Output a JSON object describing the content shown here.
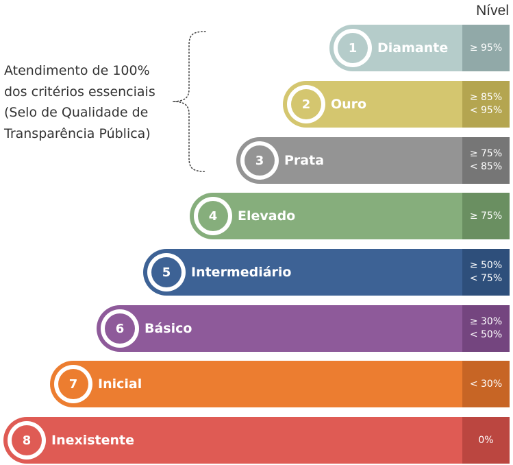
{
  "header": {
    "nivel_label": "Nível"
  },
  "annotation": {
    "lines": [
      "Atendimento de 100%",
      "dos critérios essenciais",
      "(Selo de Qualidade de",
      "Transparência Pública)"
    ]
  },
  "levels": [
    {
      "number": "1",
      "name": "Diamante",
      "range_line1": "≥ 95%",
      "range_line2": "",
      "color": "#b5ccca",
      "dark_color": "#91a9a8"
    },
    {
      "number": "2",
      "name": "Ouro",
      "range_line1": "≥ 85%",
      "range_line2": "< 95%",
      "color": "#d4c66f",
      "dark_color": "#b4a550"
    },
    {
      "number": "3",
      "name": "Prata",
      "range_line1": "≥ 75%",
      "range_line2": "< 85%",
      "color": "#949494",
      "dark_color": "#767676"
    },
    {
      "number": "4",
      "name": "Elevado",
      "range_line1": "≥ 75%",
      "range_line2": "",
      "color": "#86ae7c",
      "dark_color": "#6a8f61"
    },
    {
      "number": "5",
      "name": "Intermediário",
      "range_line1": "≥ 50%",
      "range_line2": "< 75%",
      "color": "#3d6295",
      "dark_color": "#2e4f7b"
    },
    {
      "number": "6",
      "name": "Básico",
      "range_line1": "≥ 30%",
      "range_line2": "< 50%",
      "color": "#8e5a9a",
      "dark_color": "#74457f"
    },
    {
      "number": "7",
      "name": "Inicial",
      "range_line1": "< 30%",
      "range_line2": "",
      "color": "#ec7d30",
      "dark_color": "#c76525"
    },
    {
      "number": "8",
      "name": "Inexistente",
      "range_line1": "0%",
      "range_line2": "",
      "color": "#df5b54",
      "dark_color": "#bb4640"
    }
  ]
}
